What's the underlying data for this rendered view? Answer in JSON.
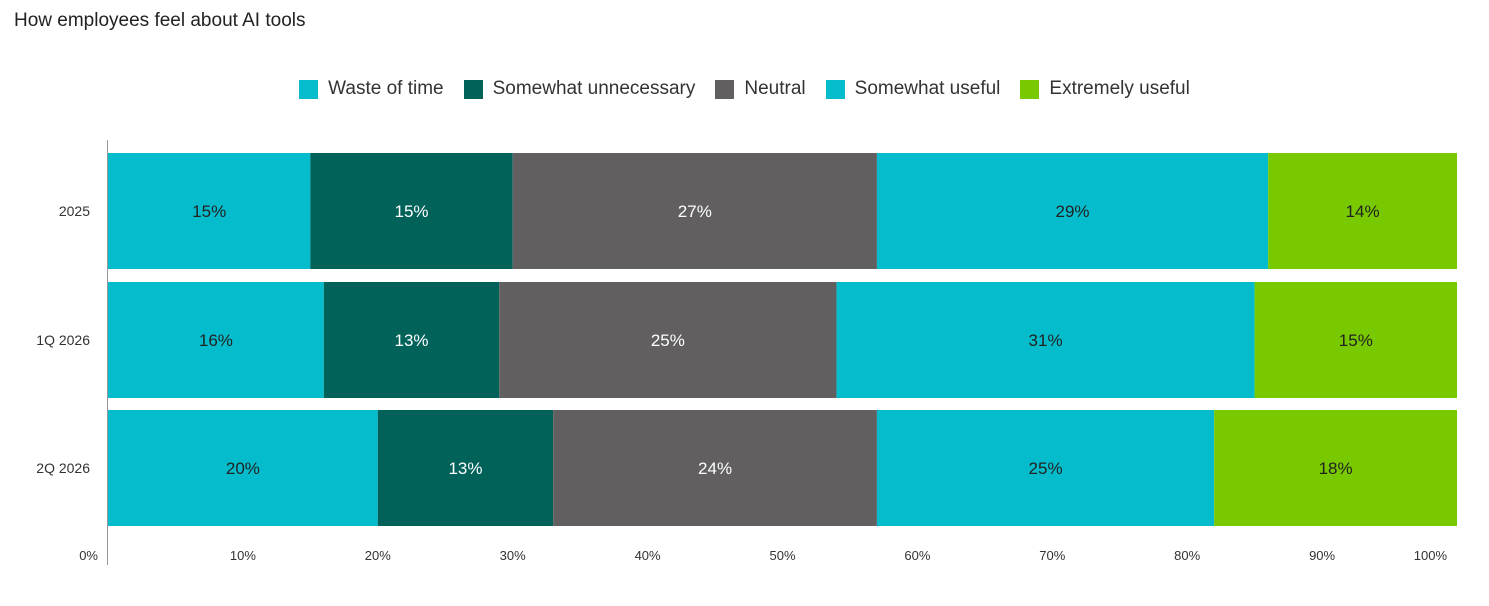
{
  "chart_data": {
    "type": "bar",
    "orientation": "horizontal",
    "stacked": true,
    "title": "How employees feel about AI tools",
    "categories": [
      "2025",
      "1Q 2026",
      "2Q 2026"
    ],
    "series": [
      {
        "name": "Waste of time",
        "color": "#04BCCB",
        "values": [
          15,
          16,
          20
        ],
        "labels": [
          "15%",
          "16%",
          "20%"
        ],
        "label_color": "#222222"
      },
      {
        "name": "Somewhat unnecessary",
        "color": "#01625A",
        "values": [
          15,
          13,
          13
        ],
        "labels": [
          "15%",
          "13%",
          "13%"
        ],
        "label_color": "#ffffff"
      },
      {
        "name": "Neutral",
        "color": "#615F5F",
        "values": [
          27,
          25,
          24
        ],
        "labels": [
          "27%",
          "25%",
          "24%"
        ],
        "label_color": "#ffffff"
      },
      {
        "name": "Somewhat useful",
        "color": "#04BCCB",
        "values": [
          29,
          31,
          25
        ],
        "labels": [
          "29%",
          "31%",
          "25%"
        ],
        "label_color": "#222222"
      },
      {
        "name": "Extremely useful",
        "color": "#79C900",
        "values": [
          14,
          15,
          18
        ],
        "labels": [
          "14%",
          "15%",
          "18%"
        ],
        "label_color": "#222222"
      }
    ],
    "x_ticks": [
      "0%",
      "10%",
      "20%",
      "30%",
      "40%",
      "50%",
      "60%",
      "70%",
      "80%",
      "90%",
      "100%"
    ],
    "xlim": [
      0,
      100
    ],
    "legend_position": "top-center",
    "grid": false
  }
}
